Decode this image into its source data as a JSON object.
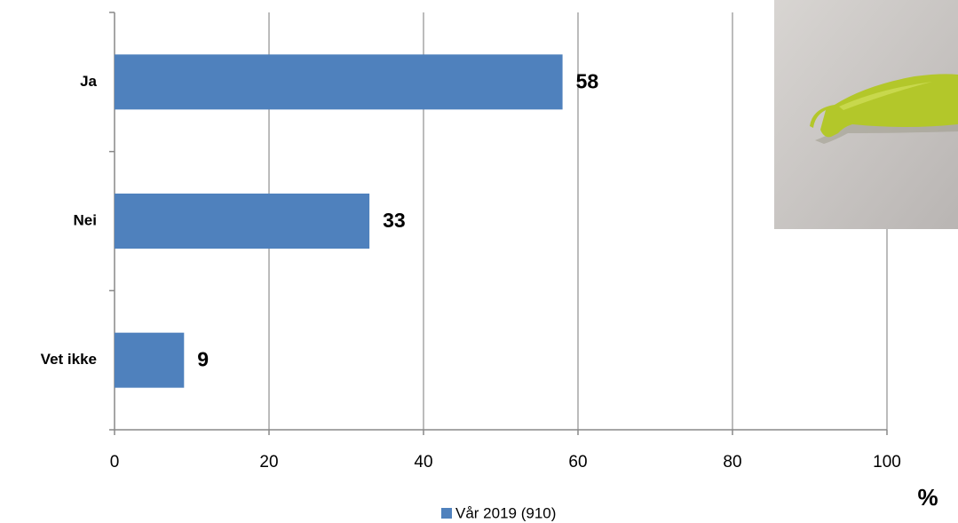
{
  "chart_data": {
    "type": "bar",
    "orientation": "horizontal",
    "categories": [
      "Ja",
      "Nei",
      "Vet ikke"
    ],
    "series": [
      {
        "name": "Vår 2019 (910)",
        "color": "#4f81bd",
        "values": [
          58,
          33,
          9
        ]
      }
    ],
    "x_label": "%",
    "xlim": [
      0,
      100
    ],
    "xticks": [
      0,
      20,
      40,
      60,
      80,
      100
    ],
    "grid": true,
    "legend": "bottom"
  }
}
